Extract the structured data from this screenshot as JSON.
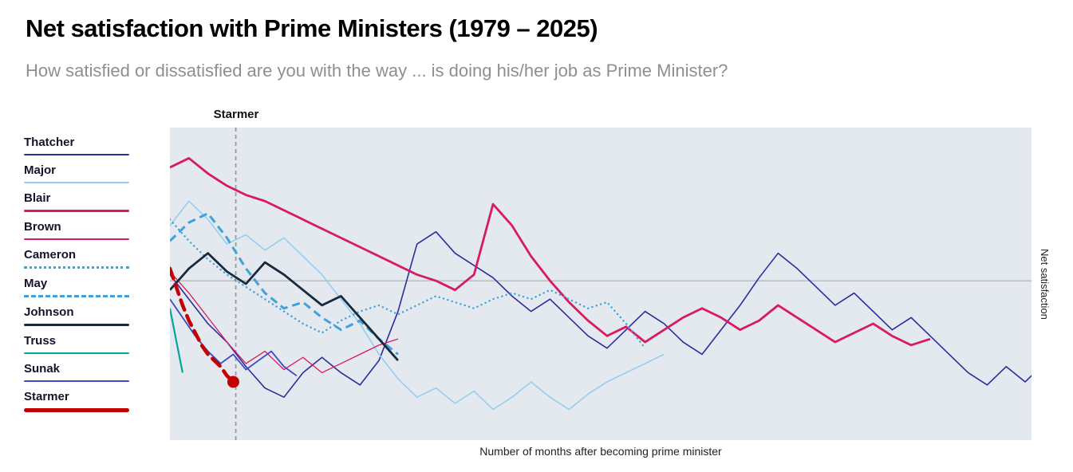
{
  "header": {
    "title": "Net satisfaction with Prime Ministers (1979 – 2025)",
    "subtitle": "How satisfied or dissatisfied are you with the way ... is doing his/her job as Prime Minister?"
  },
  "chart_data": {
    "type": "line",
    "title": "Net satisfaction with Prime Ministers (1979 – 2025)",
    "xlabel": "Number of months after becoming prime minister",
    "ylabel": "Net satisfaction",
    "xlim": [
      0,
      136
    ],
    "ylim": [
      -52,
      50
    ],
    "grid": false,
    "legend_position": "left",
    "background": "#e4e8ef",
    "zero_line": 0,
    "zero_line_color": "#a9a9a9",
    "annotation": {
      "label": "Starmer",
      "x": 10.4,
      "color": "#9b9b9b"
    },
    "end_marker": {
      "series": "Starmer",
      "x": 10,
      "value": -33,
      "color": "#c40000",
      "radius": 7.5
    },
    "series": [
      {
        "name": "Thatcher",
        "color": "#2b2e9b",
        "width": 1.6,
        "dash": "",
        "linecap": "butt",
        "x0": 0,
        "dx": 3,
        "legend": {
          "style": "solid",
          "thickness": 2
        },
        "values": [
          2,
          -6,
          -14,
          -20,
          -28,
          -35,
          -38,
          -30,
          -25,
          -30,
          -34,
          -26,
          -10,
          12,
          16,
          9,
          5,
          1,
          -5,
          -10,
          -6,
          -12,
          -18,
          -22,
          -16,
          -10,
          -14,
          -20,
          -24,
          -16,
          -8,
          1,
          9,
          4,
          -2,
          -8,
          -4,
          -10,
          -16,
          -12,
          -18,
          -24,
          -30,
          -34,
          -28,
          -33,
          -27
        ]
      },
      {
        "name": "Major",
        "color": "#96cfee",
        "width": 1.6,
        "dash": "",
        "linecap": "butt",
        "x0": 0,
        "dx": 3,
        "legend": {
          "style": "solid",
          "thickness": 2
        },
        "values": [
          18,
          26,
          20,
          12,
          15,
          10,
          14,
          8,
          2,
          -6,
          -14,
          -24,
          -32,
          -38,
          -35,
          -40,
          -36,
          -42,
          -38,
          -33,
          -38,
          -42,
          -37,
          -33,
          -30,
          -27,
          -24
        ]
      },
      {
        "name": "Blair",
        "color": "#d81b60",
        "width": 2.8,
        "dash": "",
        "linecap": "butt",
        "x0": 0,
        "dx": 3,
        "legend": {
          "style": "solid",
          "thickness": 3
        },
        "values": [
          37,
          40,
          35,
          31,
          28,
          26,
          23,
          20,
          17,
          14,
          11,
          8,
          5,
          2,
          0,
          -3,
          2,
          25,
          18,
          8,
          0,
          -7,
          -13,
          -18,
          -15,
          -20,
          -16,
          -12,
          -9,
          -12,
          -16,
          -13,
          -8,
          -12,
          -16,
          -20,
          -17,
          -14,
          -18,
          -21,
          -19
        ]
      },
      {
        "name": "Brown",
        "color": "#d81b60",
        "width": 1.3,
        "dash": "",
        "linecap": "butt",
        "x0": 0,
        "dx": 3,
        "legend": {
          "style": "solid",
          "thickness": 2
        },
        "values": [
          3,
          -4,
          -12,
          -20,
          -27,
          -23,
          -29,
          -25,
          -30,
          -27,
          -24,
          -21,
          -19
        ]
      },
      {
        "name": "Cameron",
        "color": "#41a2d9",
        "width": 2.4,
        "dash": "0.1 5.5",
        "linecap": "round",
        "x0": 0,
        "dx": 3,
        "legend": {
          "style": "dotted",
          "thickness": 3
        },
        "values": [
          20,
          13,
          7,
          2,
          -2,
          -6,
          -10,
          -14,
          -17,
          -13,
          -10,
          -8,
          -11,
          -8,
          -5,
          -7,
          -9,
          -6,
          -4,
          -6,
          -3,
          -6,
          -9,
          -7,
          -14,
          -22
        ]
      },
      {
        "name": "May",
        "color": "#41a2d9",
        "width": 3,
        "dash": "10 6",
        "linecap": "butt",
        "x0": 0,
        "dx": 3,
        "legend": {
          "style": "dashed",
          "thickness": 3
        },
        "values": [
          13,
          19,
          22,
          14,
          4,
          -4,
          -9,
          -7,
          -12,
          -16,
          -13,
          -19,
          -24
        ]
      },
      {
        "name": "Johnson",
        "color": "#17293b",
        "width": 2.8,
        "dash": "",
        "linecap": "butt",
        "x0": 0,
        "dx": 3,
        "legend": {
          "style": "solid",
          "thickness": 3
        },
        "values": [
          -3,
          4,
          9,
          3,
          -1,
          6,
          2,
          -3,
          -8,
          -5,
          -12,
          -19,
          -26
        ]
      },
      {
        "name": "Truss",
        "color": "#00a79c",
        "width": 2.2,
        "dash": "",
        "linecap": "butt",
        "x0": 0,
        "dx": 2,
        "legend": {
          "style": "solid",
          "thickness": 2
        },
        "values": [
          -9,
          -30
        ]
      },
      {
        "name": "Sunak",
        "color": "#3a49c4",
        "width": 1.8,
        "dash": "",
        "linecap": "butt",
        "x0": 0,
        "dx": 2,
        "legend": {
          "style": "solid",
          "thickness": 2
        },
        "values": [
          -6,
          -12,
          -18,
          -23,
          -27,
          -24,
          -29,
          -26,
          -23,
          -28,
          -31
        ]
      },
      {
        "name": "Starmer",
        "color": "#c40000",
        "width": 4.5,
        "dash": "13 8",
        "linecap": "round",
        "x0": 0,
        "dx": 1,
        "legend": {
          "style": "solid",
          "thickness": 5
        },
        "values": [
          4,
          -2,
          -8,
          -13,
          -17,
          -21,
          -24,
          -26,
          -28,
          -31,
          -33
        ]
      }
    ]
  }
}
